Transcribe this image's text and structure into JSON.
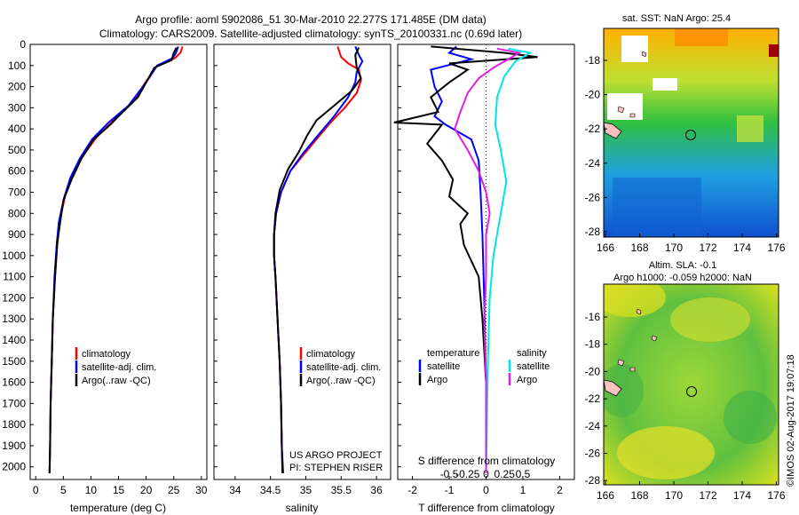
{
  "header": {
    "line1": "Argo profile: aoml 5902086_51 30-Mar-2010 22.277S 171.485E (DM data)",
    "line2": "Climatology: CARS2009. Satellite-adjusted climatology: synTS_20100331.nc (0.69d later)"
  },
  "colors": {
    "climatology": "#ff0000",
    "satellite": "#0000ff",
    "argo": "#000000",
    "sat_salinity": "#00e5e5",
    "argo_salinity": "#e020e0"
  },
  "depth_axis": {
    "ticks": [
      0,
      100,
      200,
      300,
      400,
      500,
      600,
      700,
      800,
      900,
      1000,
      1100,
      1200,
      1300,
      1400,
      1500,
      1600,
      1700,
      1800,
      1900,
      2000
    ],
    "ylim": [
      0,
      2060
    ]
  },
  "chart_data": [
    {
      "type": "line",
      "id": "temperature",
      "xlabel": "temperature (deg C)",
      "xlim": [
        -1,
        31
      ],
      "xticks": [
        0,
        5,
        10,
        15,
        20,
        25,
        30
      ],
      "legend": [
        "climatology",
        "satellite-adj. clim.",
        "Argo(..raw -QC)"
      ],
      "series": [
        {
          "name": "climatology",
          "color": "red",
          "points": [
            [
              26.6,
              10
            ],
            [
              26.2,
              40
            ],
            [
              25.2,
              65
            ],
            [
              21.8,
              105
            ],
            [
              19.5,
              195
            ],
            [
              18.0,
              260
            ],
            [
              14.5,
              350
            ],
            [
              11.0,
              440
            ],
            [
              8.5,
              530
            ],
            [
              6.6,
              620
            ],
            [
              5.3,
              720
            ],
            [
              4.4,
              830
            ],
            [
              3.9,
              950
            ],
            [
              3.5,
              1100
            ],
            [
              3.1,
              1300
            ],
            [
              2.9,
              1500
            ],
            [
              2.7,
              1700
            ],
            [
              2.6,
              1900
            ],
            [
              2.5,
              2030
            ]
          ]
        },
        {
          "name": "satellite-adj. clim.",
          "color": "blue",
          "points": [
            [
              25.8,
              10
            ],
            [
              25.4,
              40
            ],
            [
              24.8,
              65
            ],
            [
              22.0,
              100
            ],
            [
              20.0,
              180
            ],
            [
              16.8,
              290
            ],
            [
              13.2,
              370
            ],
            [
              10.2,
              450
            ],
            [
              8.0,
              540
            ],
            [
              6.3,
              630
            ],
            [
              5.1,
              730
            ],
            [
              4.2,
              840
            ],
            [
              3.8,
              950
            ],
            [
              3.4,
              1100
            ],
            [
              3.1,
              1300
            ],
            [
              2.9,
              1500
            ],
            [
              2.7,
              1700
            ],
            [
              2.6,
              1900
            ],
            [
              2.5,
              2030
            ]
          ]
        },
        {
          "name": "Argo(..raw -QC)",
          "color": "black",
          "points": [
            [
              25.5,
              15
            ],
            [
              25.0,
              40
            ],
            [
              24.6,
              75
            ],
            [
              21.5,
              110
            ],
            [
              18.5,
              250
            ],
            [
              15.0,
              340
            ],
            [
              13.5,
              380
            ],
            [
              10.5,
              450
            ],
            [
              8.3,
              540
            ],
            [
              6.5,
              640
            ],
            [
              5.0,
              740
            ],
            [
              4.5,
              830
            ],
            [
              3.9,
              940
            ],
            [
              3.5,
              1100
            ],
            [
              3.1,
              1300
            ],
            [
              2.9,
              1500
            ],
            [
              2.7,
              1700
            ],
            [
              2.6,
              1900
            ],
            [
              2.5,
              2030
            ]
          ]
        }
      ]
    },
    {
      "type": "line",
      "id": "salinity",
      "xlabel": "salinity",
      "xlim": [
        33.7,
        36.2
      ],
      "xticks": [
        34,
        34.5,
        35,
        35.5,
        36
      ],
      "xtick_labels": [
        "34",
        "34.5",
        "35",
        "35.5",
        "36"
      ],
      "legend": [
        "climatology",
        "satellite-adj. clim.",
        "Argo(..raw -QC)"
      ],
      "annotation": [
        "US ARGO PROJECT",
        "PI: STEPHEN RISER"
      ],
      "series": [
        {
          "name": "climatology",
          "color": "red",
          "points": [
            [
              35.45,
              10
            ],
            [
              35.5,
              60
            ],
            [
              35.6,
              90
            ],
            [
              35.75,
              120
            ],
            [
              35.78,
              170
            ],
            [
              35.72,
              230
            ],
            [
              35.55,
              300
            ],
            [
              35.35,
              370
            ],
            [
              35.15,
              450
            ],
            [
              34.95,
              530
            ],
            [
              34.78,
              600
            ],
            [
              34.65,
              700
            ],
            [
              34.58,
              800
            ],
            [
              34.55,
              900
            ],
            [
              34.55,
              1000
            ],
            [
              34.57,
              1100
            ],
            [
              34.6,
              1300
            ],
            [
              34.63,
              1500
            ],
            [
              34.65,
              1700
            ],
            [
              34.66,
              1900
            ],
            [
              34.67,
              2030
            ]
          ]
        },
        {
          "name": "satellite-adj. clim.",
          "color": "blue",
          "points": [
            [
              35.7,
              10
            ],
            [
              35.75,
              50
            ],
            [
              35.8,
              80
            ],
            [
              35.72,
              130
            ],
            [
              35.7,
              180
            ],
            [
              35.6,
              250
            ],
            [
              35.4,
              340
            ],
            [
              35.15,
              440
            ],
            [
              34.95,
              520
            ],
            [
              34.78,
              600
            ],
            [
              34.65,
              700
            ],
            [
              34.58,
              800
            ],
            [
              34.55,
              900
            ],
            [
              34.55,
              1000
            ],
            [
              34.57,
              1100
            ],
            [
              34.6,
              1300
            ],
            [
              34.63,
              1500
            ],
            [
              34.65,
              1700
            ],
            [
              34.66,
              1900
            ],
            [
              34.68,
              2030
            ]
          ]
        },
        {
          "name": "Argo(..raw -QC)",
          "color": "black",
          "points": [
            [
              35.75,
              15
            ],
            [
              35.7,
              50
            ],
            [
              35.72,
              110
            ],
            [
              35.78,
              160
            ],
            [
              35.65,
              220
            ],
            [
              35.4,
              290
            ],
            [
              35.15,
              360
            ],
            [
              35.02,
              430
            ],
            [
              34.9,
              510
            ],
            [
              34.75,
              590
            ],
            [
              34.63,
              690
            ],
            [
              34.57,
              800
            ],
            [
              34.55,
              900
            ],
            [
              34.55,
              1000
            ],
            [
              34.57,
              1100
            ],
            [
              34.6,
              1300
            ],
            [
              34.63,
              1500
            ],
            [
              34.65,
              1700
            ],
            [
              34.66,
              1900
            ],
            [
              34.67,
              2030
            ]
          ]
        }
      ]
    },
    {
      "type": "line",
      "id": "difference",
      "xlabel": "T difference from climatology",
      "xlabel_top": "S difference from climatology",
      "xlim": [
        -2.4,
        2.4
      ],
      "xticks": [
        -2,
        -1,
        0,
        1,
        2
      ],
      "sticks_labels": [
        "-0.5",
        "-0.25",
        "0",
        "0.25",
        "0.5"
      ],
      "legend_headers": [
        "temperature",
        "salinity"
      ],
      "legend_left": [
        "satellite",
        "Argo"
      ],
      "legend_right": [
        "satellite",
        "Argo"
      ],
      "series": [
        {
          "name": "T satellite",
          "color": "blue",
          "points": [
            [
              -0.8,
              10
            ],
            [
              -1.0,
              40
            ],
            [
              -0.4,
              70
            ],
            [
              -1.5,
              120
            ],
            [
              -1.4,
              200
            ],
            [
              -1.2,
              270
            ],
            [
              -1.4,
              340
            ],
            [
              -1.1,
              380
            ],
            [
              -0.4,
              450
            ],
            [
              -0.2,
              550
            ],
            [
              -0.15,
              700
            ],
            [
              -0.1,
              900
            ],
            [
              -0.05,
              1200
            ],
            [
              0.0,
              1600
            ],
            [
              0.0,
              2030
            ]
          ]
        },
        {
          "name": "T Argo",
          "color": "black",
          "points": [
            [
              -1.5,
              10
            ],
            [
              0.5,
              40
            ],
            [
              1.4,
              60
            ],
            [
              -1.0,
              90
            ],
            [
              -0.5,
              120
            ],
            [
              -1.0,
              180
            ],
            [
              -1.5,
              250
            ],
            [
              -1.3,
              320
            ],
            [
              -2.5,
              370
            ],
            [
              -1.2,
              380
            ],
            [
              -1.6,
              470
            ],
            [
              -1.2,
              550
            ],
            [
              -0.9,
              640
            ],
            [
              -1.0,
              720
            ],
            [
              -0.5,
              800
            ],
            [
              -0.7,
              850
            ],
            [
              -0.6,
              950
            ],
            [
              -0.2,
              1100
            ],
            [
              -0.1,
              1300
            ],
            [
              0.0,
              1600
            ],
            [
              0.0,
              2030
            ]
          ]
        },
        {
          "name": "S satellite",
          "color": "cyan",
          "points": [
            [
              0.6,
              20
            ],
            [
              1.2,
              40
            ],
            [
              0.8,
              80
            ],
            [
              0.5,
              150
            ],
            [
              0.3,
              250
            ],
            [
              0.25,
              380
            ],
            [
              0.4,
              500
            ],
            [
              0.55,
              650
            ],
            [
              0.4,
              800
            ],
            [
              0.3,
              900
            ],
            [
              0.2,
              1000
            ],
            [
              0.1,
              1200
            ],
            [
              0.05,
              1500
            ],
            [
              0.0,
              2030
            ]
          ]
        },
        {
          "name": "S Argo",
          "color": "magenta",
          "points": [
            [
              0.3,
              20
            ],
            [
              0.9,
              40
            ],
            [
              0.6,
              70
            ],
            [
              0.2,
              110
            ],
            [
              -0.2,
              160
            ],
            [
              -0.5,
              230
            ],
            [
              -0.7,
              320
            ],
            [
              -0.85,
              400
            ],
            [
              -0.5,
              500
            ],
            [
              -0.2,
              600
            ],
            [
              0.0,
              700
            ],
            [
              0.1,
              800
            ],
            [
              0.0,
              900
            ],
            [
              0.0,
              1100
            ],
            [
              -0.05,
              1300
            ],
            [
              0.0,
              1600
            ],
            [
              0.0,
              2030
            ]
          ]
        }
      ]
    }
  ],
  "maps": {
    "sst": {
      "title": "sat. SST: NaN Argo: 25.4",
      "x_ticks": [
        "166",
        "168",
        "170",
        "172",
        "174",
        "176"
      ],
      "y_ticks": [
        "-18",
        "-20",
        "-22",
        "-24",
        "-26",
        "-28"
      ]
    },
    "sla": {
      "title1": "Altim. SLA: -0.1",
      "title2": "Argo h1000: -0.059 h2000: NaN",
      "x_ticks": [
        "166",
        "168",
        "170",
        "172",
        "174",
        "176"
      ],
      "y_ticks": [
        "-16",
        "-18",
        "-20",
        "-22",
        "-24",
        "-26",
        "-28"
      ]
    }
  },
  "footer": {
    "credit": "©IMOS 02-Aug-2017 19:07:18"
  }
}
